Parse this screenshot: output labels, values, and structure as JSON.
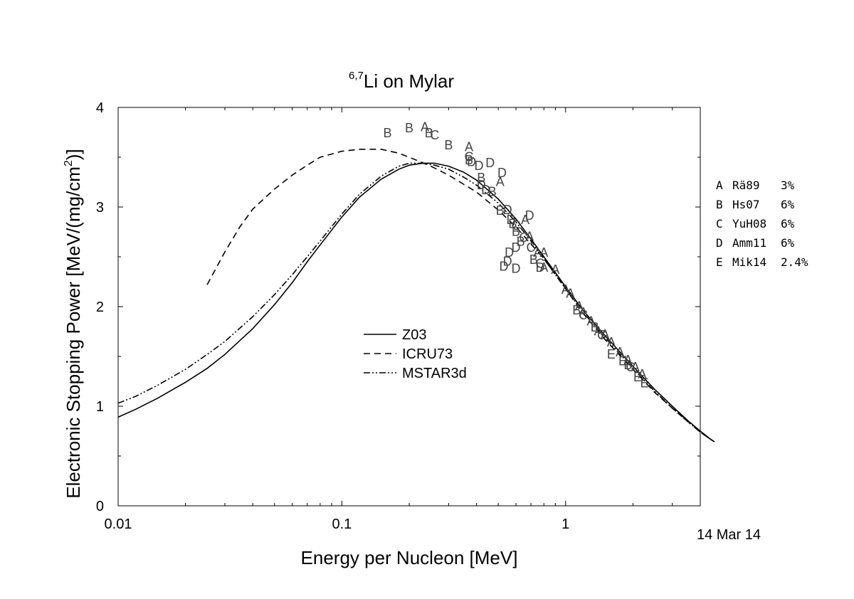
{
  "chart_data": {
    "type": "scatter",
    "title": {
      "sup": "6,7",
      "main": "Li on Mylar"
    },
    "xlabel": "Energy per Nucleon [MeV]",
    "ylabel": {
      "main": "Electronic Stopping Power [MeV/(mg/cm",
      "sup": "2",
      "tail": ")]"
    },
    "xscale": "log",
    "xlim": [
      0.01,
      4.0
    ],
    "ylim": [
      0,
      4
    ],
    "x_ticks": [
      {
        "value": 0.01,
        "label": "0.01"
      },
      {
        "value": 0.1,
        "label": "0.1"
      },
      {
        "value": 1,
        "label": "1"
      }
    ],
    "y_ticks": [
      {
        "value": 0,
        "label": "0"
      },
      {
        "value": 1,
        "label": "1"
      },
      {
        "value": 2,
        "label": "2"
      },
      {
        "value": 3,
        "label": "3"
      },
      {
        "value": 4,
        "label": "4"
      }
    ],
    "date_stamp": "14 Mar 14",
    "legend_lines_position": "center",
    "legend_data_position": "right",
    "curves": [
      {
        "name": "Z03",
        "style": "solid",
        "points": [
          [
            0.01,
            0.89
          ],
          [
            0.012,
            0.97
          ],
          [
            0.015,
            1.08
          ],
          [
            0.02,
            1.24
          ],
          [
            0.025,
            1.38
          ],
          [
            0.03,
            1.52
          ],
          [
            0.04,
            1.78
          ],
          [
            0.05,
            2.02
          ],
          [
            0.06,
            2.24
          ],
          [
            0.07,
            2.45
          ],
          [
            0.08,
            2.62
          ],
          [
            0.1,
            2.9
          ],
          [
            0.12,
            3.1
          ],
          [
            0.15,
            3.28
          ],
          [
            0.18,
            3.38
          ],
          [
            0.2,
            3.42
          ],
          [
            0.23,
            3.44
          ],
          [
            0.26,
            3.44
          ],
          [
            0.3,
            3.41
          ],
          [
            0.35,
            3.35
          ],
          [
            0.4,
            3.27
          ],
          [
            0.5,
            3.08
          ],
          [
            0.6,
            2.88
          ],
          [
            0.7,
            2.68
          ],
          [
            0.8,
            2.5
          ],
          [
            1.0,
            2.2
          ],
          [
            1.2,
            1.96
          ],
          [
            1.5,
            1.71
          ],
          [
            2.0,
            1.4
          ],
          [
            2.5,
            1.17
          ],
          [
            3.0,
            1.0
          ],
          [
            3.5,
            0.86
          ],
          [
            4.0,
            0.75
          ],
          [
            4.5,
            0.66
          ],
          [
            5.0,
            0.6
          ]
        ]
      },
      {
        "name": "ICRU73",
        "style": "dash",
        "points": [
          [
            0.025,
            2.22
          ],
          [
            0.03,
            2.55
          ],
          [
            0.035,
            2.8
          ],
          [
            0.04,
            2.98
          ],
          [
            0.05,
            3.18
          ],
          [
            0.06,
            3.32
          ],
          [
            0.07,
            3.42
          ],
          [
            0.08,
            3.5
          ],
          [
            0.1,
            3.56
          ],
          [
            0.12,
            3.58
          ],
          [
            0.15,
            3.58
          ],
          [
            0.18,
            3.54
          ],
          [
            0.2,
            3.5
          ],
          [
            0.25,
            3.41
          ],
          [
            0.3,
            3.32
          ],
          [
            0.4,
            3.15
          ],
          [
            0.5,
            2.97
          ],
          [
            0.6,
            2.8
          ],
          [
            0.8,
            2.48
          ],
          [
            1.0,
            2.18
          ],
          [
            1.2,
            1.93
          ],
          [
            1.5,
            1.67
          ],
          [
            2.0,
            1.37
          ],
          [
            2.5,
            1.14
          ],
          [
            3.0,
            0.98
          ],
          [
            3.5,
            0.85
          ],
          [
            4.0,
            0.74
          ],
          [
            4.5,
            0.66
          ],
          [
            5.0,
            0.6
          ]
        ]
      },
      {
        "name": "MSTAR3d",
        "style": "dashdotdot",
        "points": [
          [
            0.01,
            1.03
          ],
          [
            0.012,
            1.1
          ],
          [
            0.015,
            1.21
          ],
          [
            0.02,
            1.37
          ],
          [
            0.025,
            1.52
          ],
          [
            0.03,
            1.65
          ],
          [
            0.04,
            1.9
          ],
          [
            0.05,
            2.12
          ],
          [
            0.06,
            2.32
          ],
          [
            0.07,
            2.5
          ],
          [
            0.08,
            2.66
          ],
          [
            0.1,
            2.93
          ],
          [
            0.12,
            3.13
          ],
          [
            0.15,
            3.31
          ],
          [
            0.18,
            3.41
          ],
          [
            0.2,
            3.44
          ],
          [
            0.23,
            3.44
          ],
          [
            0.26,
            3.42
          ],
          [
            0.3,
            3.38
          ],
          [
            0.35,
            3.3
          ],
          [
            0.4,
            3.22
          ],
          [
            0.5,
            3.04
          ],
          [
            0.6,
            2.85
          ],
          [
            0.7,
            2.66
          ],
          [
            0.8,
            2.48
          ],
          [
            1.0,
            2.18
          ],
          [
            1.2,
            1.94
          ],
          [
            1.5,
            1.69
          ],
          [
            2.0,
            1.38
          ],
          [
            2.5,
            1.15
          ],
          [
            3.0,
            0.98
          ],
          [
            3.5,
            0.85
          ],
          [
            4.0,
            0.74
          ],
          [
            4.5,
            0.66
          ],
          [
            5.0,
            0.6
          ]
        ]
      }
    ],
    "datasets": [
      {
        "marker": "A",
        "name": "Rä89",
        "uncertainty": "3%"
      },
      {
        "marker": "B",
        "name": "Hs07",
        "uncertainty": "6%"
      },
      {
        "marker": "C",
        "name": "YuH08",
        "uncertainty": "6%"
      },
      {
        "marker": "D",
        "name": "Amm11",
        "uncertainty": "6%"
      },
      {
        "marker": "E",
        "name": "Mik14",
        "uncertainty": "2.4%"
      }
    ],
    "points": [
      {
        "m": "A",
        "x": 0.235,
        "y": 3.81
      },
      {
        "m": "A",
        "x": 0.37,
        "y": 3.61
      },
      {
        "m": "A",
        "x": 0.51,
        "y": 3.26
      },
      {
        "m": "A",
        "x": 0.66,
        "y": 2.88
      },
      {
        "m": "A",
        "x": 0.69,
        "y": 2.71
      },
      {
        "m": "A",
        "x": 0.75,
        "y": 2.55
      },
      {
        "m": "A",
        "x": 0.8,
        "y": 2.55
      },
      {
        "m": "A",
        "x": 0.8,
        "y": 2.4
      },
      {
        "m": "A",
        "x": 0.9,
        "y": 2.38
      },
      {
        "m": "A",
        "x": 1.0,
        "y": 2.18
      },
      {
        "m": "A",
        "x": 1.05,
        "y": 2.14
      },
      {
        "m": "A",
        "x": 1.15,
        "y": 2.01
      },
      {
        "m": "A",
        "x": 1.2,
        "y": 1.95
      },
      {
        "m": "A",
        "x": 1.3,
        "y": 1.86
      },
      {
        "m": "A",
        "x": 1.4,
        "y": 1.76
      },
      {
        "m": "A",
        "x": 1.5,
        "y": 1.73
      },
      {
        "m": "A",
        "x": 1.6,
        "y": 1.65
      },
      {
        "m": "A",
        "x": 1.75,
        "y": 1.55
      },
      {
        "m": "A",
        "x": 1.9,
        "y": 1.47
      },
      {
        "m": "A",
        "x": 2.05,
        "y": 1.4
      },
      {
        "m": "A",
        "x": 2.2,
        "y": 1.33
      },
      {
        "m": "B",
        "x": 0.16,
        "y": 3.75
      },
      {
        "m": "B",
        "x": 0.2,
        "y": 3.8
      },
      {
        "m": "B",
        "x": 0.245,
        "y": 3.75
      },
      {
        "m": "B",
        "x": 0.3,
        "y": 3.63
      },
      {
        "m": "B",
        "x": 0.37,
        "y": 3.48
      },
      {
        "m": "B",
        "x": 0.42,
        "y": 3.3
      },
      {
        "m": "B",
        "x": 0.47,
        "y": 3.16
      },
      {
        "m": "B",
        "x": 0.51,
        "y": 2.97
      },
      {
        "m": "B",
        "x": 0.58,
        "y": 2.84
      },
      {
        "m": "B",
        "x": 0.6,
        "y": 2.76
      },
      {
        "m": "B",
        "x": 0.63,
        "y": 2.66
      },
      {
        "m": "B",
        "x": 0.72,
        "y": 2.48
      },
      {
        "m": "B",
        "x": 1.12,
        "y": 1.97
      },
      {
        "m": "B",
        "x": 1.35,
        "y": 1.8
      },
      {
        "m": "B",
        "x": 1.9,
        "y": 1.42
      },
      {
        "m": "C",
        "x": 0.26,
        "y": 3.73
      },
      {
        "m": "C",
        "x": 0.37,
        "y": 3.51
      },
      {
        "m": "C",
        "x": 0.6,
        "y": 2.82
      },
      {
        "m": "C",
        "x": 0.65,
        "y": 2.7
      },
      {
        "m": "C",
        "x": 0.7,
        "y": 2.6
      },
      {
        "m": "C",
        "x": 0.77,
        "y": 2.44
      },
      {
        "m": "C",
        "x": 1.2,
        "y": 1.92
      },
      {
        "m": "C",
        "x": 1.45,
        "y": 1.72
      },
      {
        "m": "C",
        "x": 1.95,
        "y": 1.4
      },
      {
        "m": "D",
        "x": 0.38,
        "y": 3.46
      },
      {
        "m": "D",
        "x": 0.46,
        "y": 3.45
      },
      {
        "m": "D",
        "x": 0.52,
        "y": 3.35
      },
      {
        "m": "D",
        "x": 0.41,
        "y": 3.42
      },
      {
        "m": "D",
        "x": 0.42,
        "y": 3.23
      },
      {
        "m": "D",
        "x": 0.44,
        "y": 3.18
      },
      {
        "m": "D",
        "x": 0.55,
        "y": 2.98
      },
      {
        "m": "D",
        "x": 0.57,
        "y": 2.88
      },
      {
        "m": "D",
        "x": 0.69,
        "y": 2.92
      },
      {
        "m": "D",
        "x": 0.56,
        "y": 2.55
      },
      {
        "m": "D",
        "x": 0.6,
        "y": 2.6
      },
      {
        "m": "D",
        "x": 0.53,
        "y": 2.41
      },
      {
        "m": "D",
        "x": 0.6,
        "y": 2.39
      },
      {
        "m": "D",
        "x": 0.55,
        "y": 2.46
      },
      {
        "m": "D",
        "x": 0.77,
        "y": 2.4
      },
      {
        "m": "E",
        "x": 1.6,
        "y": 1.53
      },
      {
        "m": "E",
        "x": 1.8,
        "y": 1.46
      },
      {
        "m": "E",
        "x": 2.1,
        "y": 1.3
      },
      {
        "m": "E",
        "x": 2.25,
        "y": 1.24
      }
    ]
  }
}
